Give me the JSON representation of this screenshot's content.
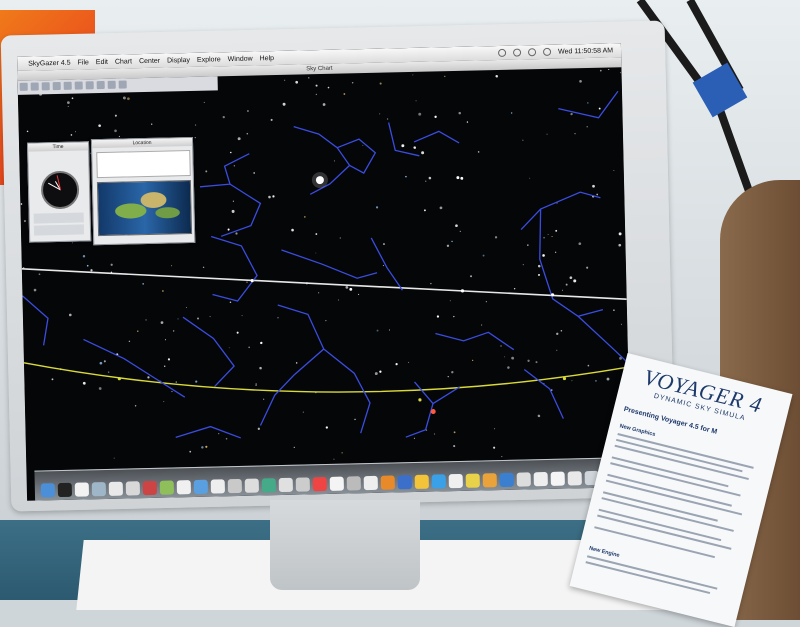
{
  "app": {
    "title": "Sky Chart"
  },
  "menubar": {
    "apple": "",
    "items": [
      "SkyGazer 4.5",
      "File",
      "Edit",
      "Chart",
      "Center",
      "Display",
      "Explore",
      "Window",
      "Help"
    ],
    "clock": "Wed 11:50:58 AM"
  },
  "time_panel": {
    "title": "Time"
  },
  "earth_panel": {
    "title": "Location"
  },
  "flyer": {
    "title": "VOYAGER 4",
    "subtitle": "DYNAMIC SKY SIMULA",
    "heading": "Presenting Voyager 4.5 for M",
    "section_1": "New Graphics",
    "section_2": "New Engine"
  },
  "colors": {
    "constellation_lines": "#3a4de0",
    "ecliptic": "#d9d93a",
    "horizon": "#e8e8e8",
    "sky": "#050608"
  }
}
